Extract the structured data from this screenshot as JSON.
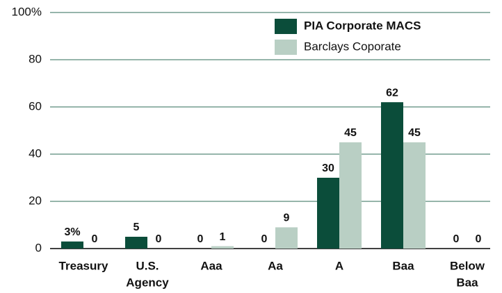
{
  "chart_data": {
    "type": "bar",
    "categories": [
      "Treasury",
      [
        "U.S.",
        "Agency"
      ],
      "Aaa",
      "Aa",
      "A",
      "Baa",
      [
        "Below",
        "Baa"
      ]
    ],
    "series": [
      {
        "name": "PIA Corporate MACS",
        "color": "#0b4d3a",
        "values": [
          3,
          5,
          0,
          0,
          30,
          62,
          0
        ],
        "value_labels": [
          "3%",
          "5",
          "0",
          "0",
          "30",
          "62",
          "0"
        ]
      },
      {
        "name": "Barclays Coporate",
        "color": "#b9cfc4",
        "values": [
          0,
          0,
          1,
          9,
          45,
          45,
          0
        ]
      }
    ],
    "ylim": [
      0,
      100
    ],
    "yticks": [
      0,
      20,
      40,
      60,
      80,
      {
        "value": 100,
        "label": "100%"
      }
    ],
    "grid": true
  }
}
